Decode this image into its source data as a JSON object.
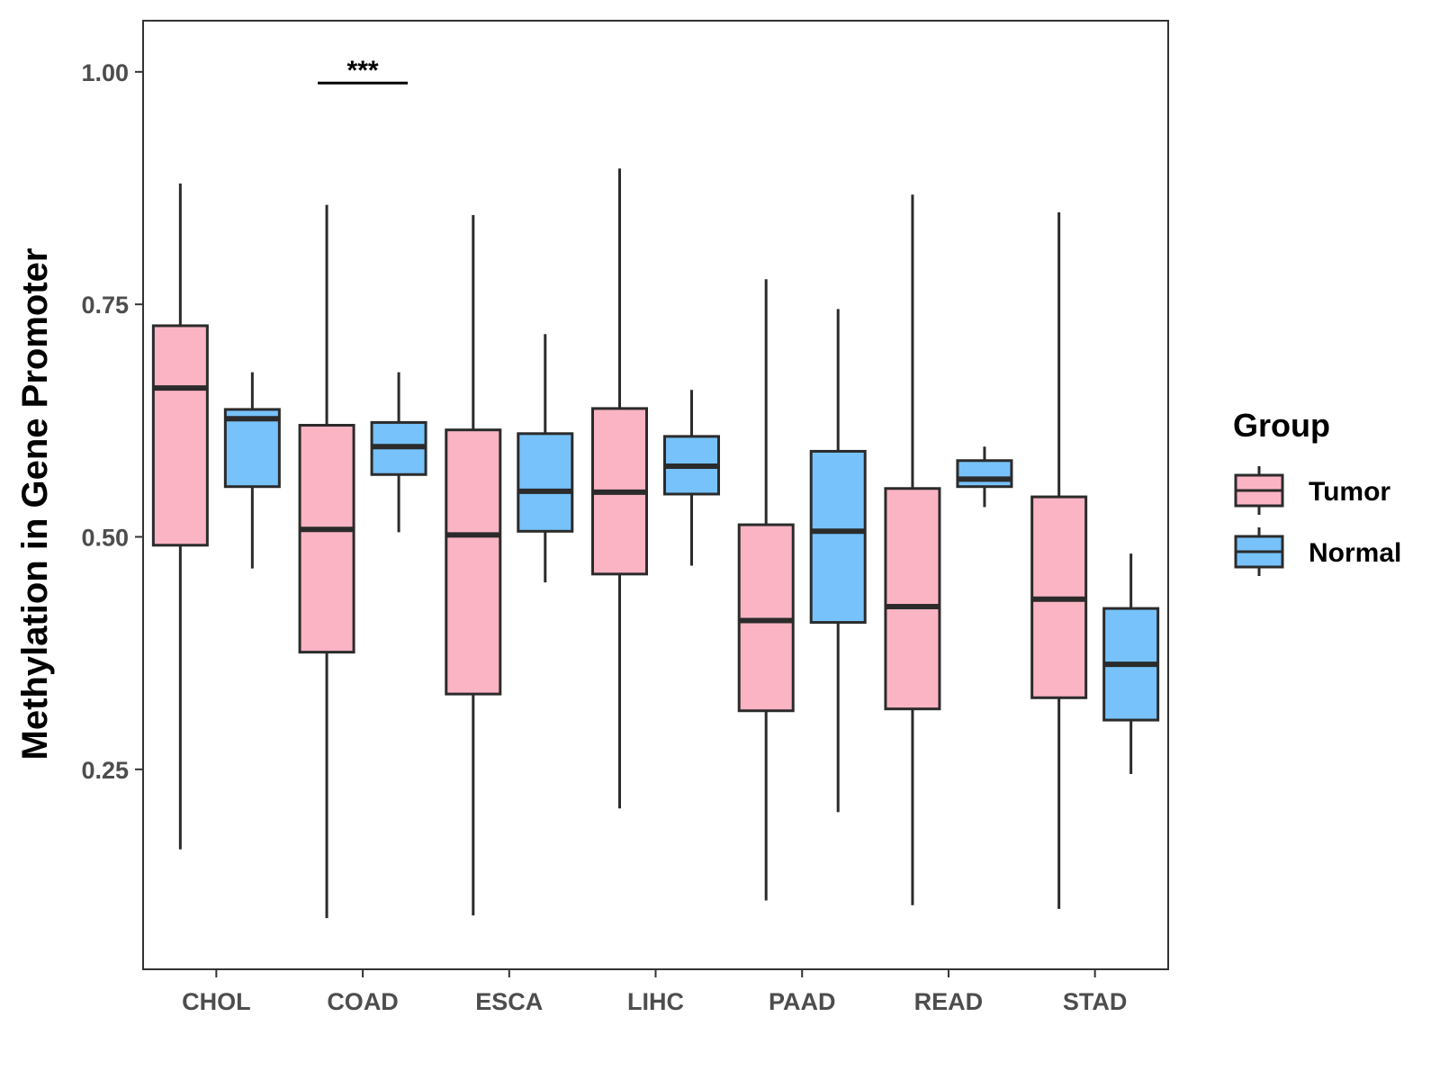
{
  "chart_data": {
    "type": "boxplot",
    "title": "",
    "xlabel": "",
    "ylabel": "Methylation in Gene Promoter",
    "ylim": [
      0.035,
      1.055
    ],
    "yticks": [
      {
        "value": 0.25,
        "label": "0.25"
      },
      {
        "value": 0.5,
        "label": "0.50"
      },
      {
        "value": 0.75,
        "label": "0.75"
      },
      {
        "value": 1.0,
        "label": "1.00"
      }
    ],
    "categories": [
      "CHOL",
      "COAD",
      "ESCA",
      "LIHC",
      "PAAD",
      "READ",
      "STAD"
    ],
    "legend": {
      "title": "Group",
      "position": "right",
      "items": [
        {
          "label": "Tumor",
          "color": "#fbb4c4"
        },
        {
          "label": "Normal",
          "color": "#77c2fa"
        }
      ]
    },
    "series": [
      {
        "name": "Tumor",
        "color": "#fbb4c4",
        "boxes": [
          {
            "min": 0.164,
            "q1": 0.491,
            "median": 0.66,
            "q3": 0.727,
            "max": 0.88
          },
          {
            "min": 0.09,
            "q1": 0.376,
            "median": 0.508,
            "q3": 0.62,
            "max": 0.857
          },
          {
            "min": 0.093,
            "q1": 0.331,
            "median": 0.502,
            "q3": 0.615,
            "max": 0.846
          },
          {
            "min": 0.208,
            "q1": 0.46,
            "median": 0.548,
            "q3": 0.638,
            "max": 0.896
          },
          {
            "min": 0.109,
            "q1": 0.313,
            "median": 0.41,
            "q3": 0.513,
            "max": 0.777
          },
          {
            "min": 0.104,
            "q1": 0.315,
            "median": 0.425,
            "q3": 0.552,
            "max": 0.868
          },
          {
            "min": 0.1,
            "q1": 0.327,
            "median": 0.433,
            "q3": 0.543,
            "max": 0.849
          }
        ]
      },
      {
        "name": "Normal",
        "color": "#77c2fa",
        "boxes": [
          {
            "min": 0.466,
            "q1": 0.554,
            "median": 0.627,
            "q3": 0.637,
            "max": 0.677
          },
          {
            "min": 0.505,
            "q1": 0.567,
            "median": 0.597,
            "q3": 0.623,
            "max": 0.677
          },
          {
            "min": 0.451,
            "q1": 0.506,
            "median": 0.549,
            "q3": 0.611,
            "max": 0.718
          },
          {
            "min": 0.469,
            "q1": 0.546,
            "median": 0.576,
            "q3": 0.608,
            "max": 0.658
          },
          {
            "min": 0.204,
            "q1": 0.408,
            "median": 0.506,
            "q3": 0.592,
            "max": 0.745
          },
          {
            "min": 0.532,
            "q1": 0.554,
            "median": 0.562,
            "q3": 0.582,
            "max": 0.597
          },
          {
            "min": 0.245,
            "q1": 0.303,
            "median": 0.363,
            "q3": 0.423,
            "max": 0.482
          }
        ]
      }
    ],
    "annotations": [
      {
        "category": "COAD",
        "text": "***",
        "y": 0.988
      }
    ]
  }
}
